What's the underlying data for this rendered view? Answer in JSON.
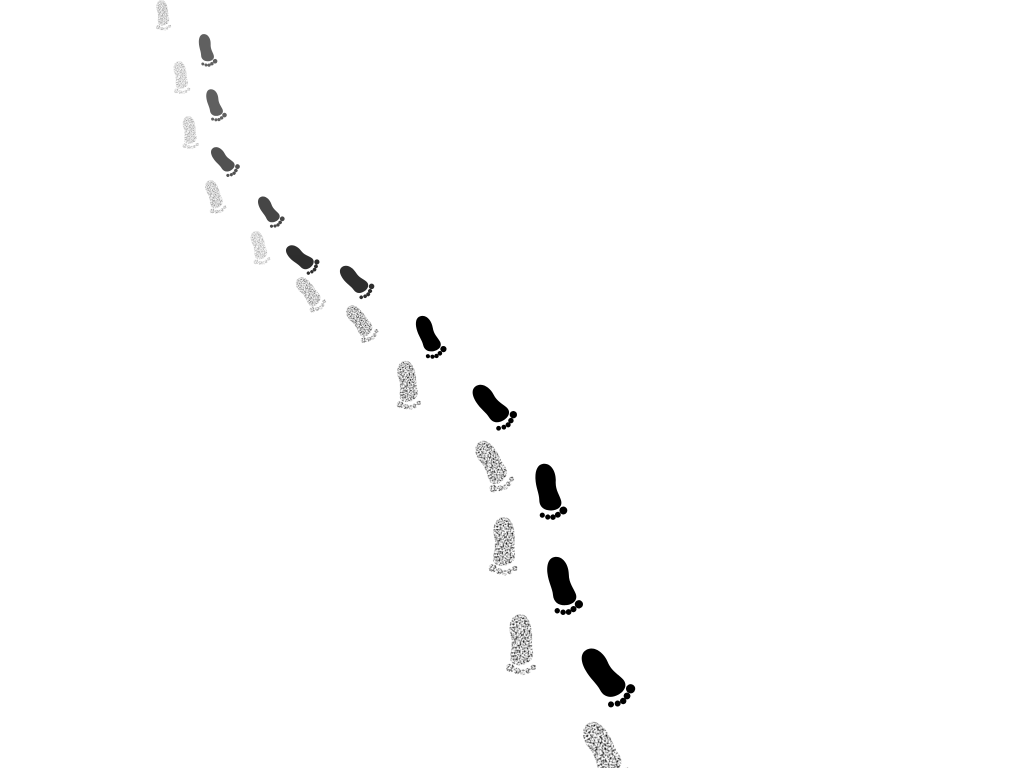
{
  "scene": {
    "background_color": "#ffffff",
    "print_color": "#000000",
    "subject": "footprints"
  }
}
